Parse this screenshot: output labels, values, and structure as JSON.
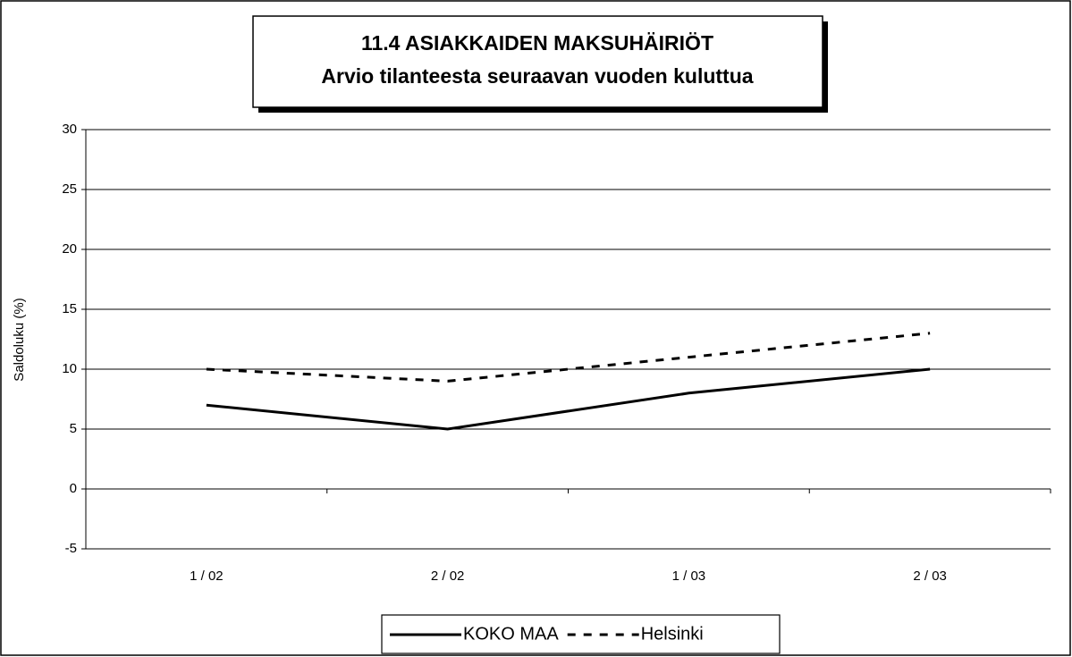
{
  "chart_data": {
    "type": "line",
    "title": "11.4 ASIAKKAIDEN MAKSUHÄIRIÖT",
    "subtitle": "Arvio tilanteesta seuraavan vuoden kuluttua",
    "y_label": "Saldoluku (%)",
    "categories": [
      "1 / 02",
      "2 / 02",
      "1 / 03",
      "2 / 03"
    ],
    "series": [
      {
        "name": "KOKO MAA",
        "color": "#000000",
        "dash": "solid",
        "values": [
          7,
          5,
          8,
          10
        ]
      },
      {
        "name": "Helsinki",
        "color": "#000000",
        "dash": "dashed",
        "values": [
          10,
          9,
          11,
          13
        ]
      }
    ],
    "ylim": [
      -5,
      30
    ],
    "yticks": [
      -5,
      0,
      5,
      10,
      15,
      20,
      25,
      30
    ],
    "grid": true,
    "legend": "bottom"
  }
}
